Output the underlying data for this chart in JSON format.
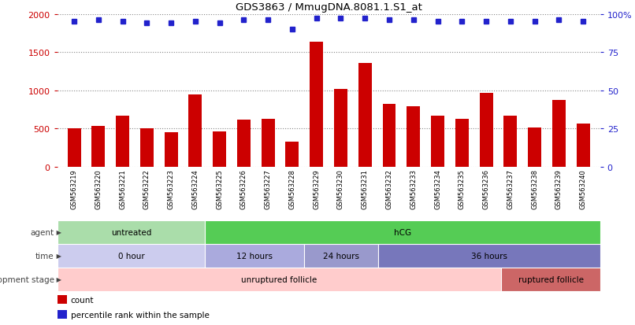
{
  "title": "GDS3863 / MmugDNA.8081.1.S1_at",
  "samples": [
    "GSM563219",
    "GSM563220",
    "GSM563221",
    "GSM563222",
    "GSM563223",
    "GSM563224",
    "GSM563225",
    "GSM563226",
    "GSM563227",
    "GSM563228",
    "GSM563229",
    "GSM563230",
    "GSM563231",
    "GSM563232",
    "GSM563233",
    "GSM563234",
    "GSM563235",
    "GSM563236",
    "GSM563237",
    "GSM563238",
    "GSM563239",
    "GSM563240"
  ],
  "counts": [
    500,
    530,
    670,
    500,
    450,
    950,
    460,
    620,
    630,
    330,
    1640,
    1020,
    1360,
    820,
    790,
    670,
    630,
    970,
    670,
    510,
    870,
    560
  ],
  "percentile_ranks": [
    95,
    96,
    95,
    94,
    94,
    95,
    94,
    96,
    96,
    90,
    97,
    97,
    97,
    96,
    96,
    95,
    95,
    95,
    95,
    95,
    96,
    95
  ],
  "bar_color": "#cc0000",
  "dot_color": "#2222cc",
  "left_yaxis_color": "#cc0000",
  "right_yaxis_color": "#2222cc",
  "ylim_left": [
    0,
    2000
  ],
  "ylim_right": [
    0,
    100
  ],
  "yticks_left": [
    0,
    500,
    1000,
    1500,
    2000
  ],
  "yticks_right": [
    0,
    25,
    50,
    75,
    100
  ],
  "ytick_labels_left": [
    "0",
    "500",
    "1000",
    "1500",
    "2000"
  ],
  "ytick_labels_right": [
    "0",
    "25",
    "50",
    "75",
    "100%"
  ],
  "agent_segments": [
    {
      "label": "untreated",
      "start": 0,
      "end": 6,
      "color": "#aaddaa"
    },
    {
      "label": "hCG",
      "start": 6,
      "end": 22,
      "color": "#55cc55"
    }
  ],
  "time_segments": [
    {
      "label": "0 hour",
      "start": 0,
      "end": 6,
      "color": "#ccccee"
    },
    {
      "label": "12 hours",
      "start": 6,
      "end": 10,
      "color": "#aaaadd"
    },
    {
      "label": "24 hours",
      "start": 10,
      "end": 13,
      "color": "#9999cc"
    },
    {
      "label": "36 hours",
      "start": 13,
      "end": 22,
      "color": "#7777bb"
    }
  ],
  "stage_segments": [
    {
      "label": "unruptured follicle",
      "start": 0,
      "end": 18,
      "color": "#ffcccc"
    },
    {
      "label": "ruptured follicle",
      "start": 18,
      "end": 22,
      "color": "#cc6666"
    }
  ],
  "legend_items": [
    {
      "color": "#cc0000",
      "label": "count"
    },
    {
      "color": "#2222cc",
      "label": "percentile rank within the sample"
    }
  ],
  "background_color": "#ffffff",
  "grid_color": "#888888",
  "row_label_color": "#444444",
  "tick_area_color": "#dddddd"
}
